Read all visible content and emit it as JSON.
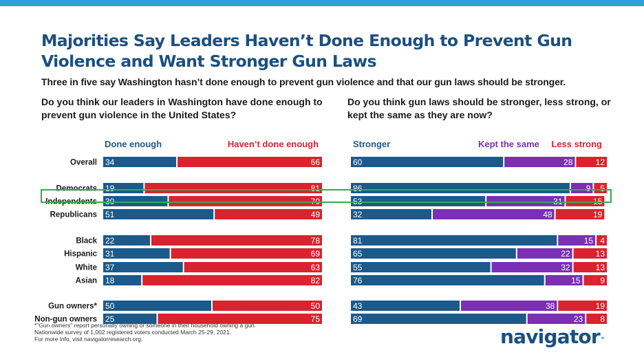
{
  "title": "Majorities Say Leaders Haven’t Done Enough to Prevent Gun Violence and Want Stronger Gun Laws",
  "subtitle": "Three in five say Washington hasn’t done enough to prevent gun violence and that our gun laws should be stronger.",
  "left_question": "Do you think our leaders in Washington have done enough to prevent gun violence in the United States?",
  "right_question": "Do you think gun laws should be stronger, less strong, or kept the same as they are now?",
  "colors": {
    "blue": "#1b5a8a",
    "red": "#d9232e",
    "purple": "#7a2fb5",
    "green": "#2fae4e"
  },
  "footnote": [
    "*\"Gun owners\" report personally owning or someone in their household owning a gun.",
    "Nationwide survey of 1,002 registered voters conducted March 25-29, 2021.",
    "For more info, visit navigatorresearch.org."
  ],
  "logo": "navigator",
  "logo_mark": "•",
  "highlighted_row": "Independents",
  "chart_data": [
    {
      "type": "bar",
      "stacked": true,
      "orientation": "horizontal",
      "title": "Do you think our leaders in Washington have done enough to prevent gun violence in the United States?",
      "categories": [
        "Overall",
        "Democrats",
        "Independents",
        "Republicans",
        "Black",
        "Hispanic",
        "White",
        "Asian",
        "Gun owners*",
        "Non-gun owners"
      ],
      "series": [
        {
          "name": "Done enough",
          "color": "#1b5a8a",
          "values": [
            34,
            19,
            30,
            51,
            22,
            31,
            37,
            18,
            50,
            25
          ]
        },
        {
          "name": "Haven’t done enough",
          "color": "#d9232e",
          "values": [
            66,
            81,
            70,
            49,
            78,
            69,
            63,
            82,
            50,
            75
          ]
        }
      ],
      "xlim": [
        0,
        100
      ]
    },
    {
      "type": "bar",
      "stacked": true,
      "orientation": "horizontal",
      "title": "Do you think gun laws should be stronger, less strong, or kept the same as they are now?",
      "categories": [
        "Overall",
        "Democrats",
        "Independents",
        "Republicans",
        "Black",
        "Hispanic",
        "White",
        "Asian",
        "Gun owners*",
        "Non-gun owners"
      ],
      "series": [
        {
          "name": "Stronger",
          "color": "#1b5a8a",
          "values": [
            60,
            86,
            53,
            32,
            81,
            65,
            55,
            76,
            43,
            69
          ]
        },
        {
          "name": "Kept the same",
          "color": "#7a2fb5",
          "values": [
            28,
            9,
            31,
            48,
            15,
            22,
            32,
            15,
            38,
            23
          ]
        },
        {
          "name": "Less strong",
          "color": "#d9232e",
          "values": [
            12,
            5,
            15,
            19,
            4,
            13,
            13,
            9,
            19,
            8
          ]
        }
      ],
      "xlim": [
        0,
        100
      ]
    }
  ]
}
